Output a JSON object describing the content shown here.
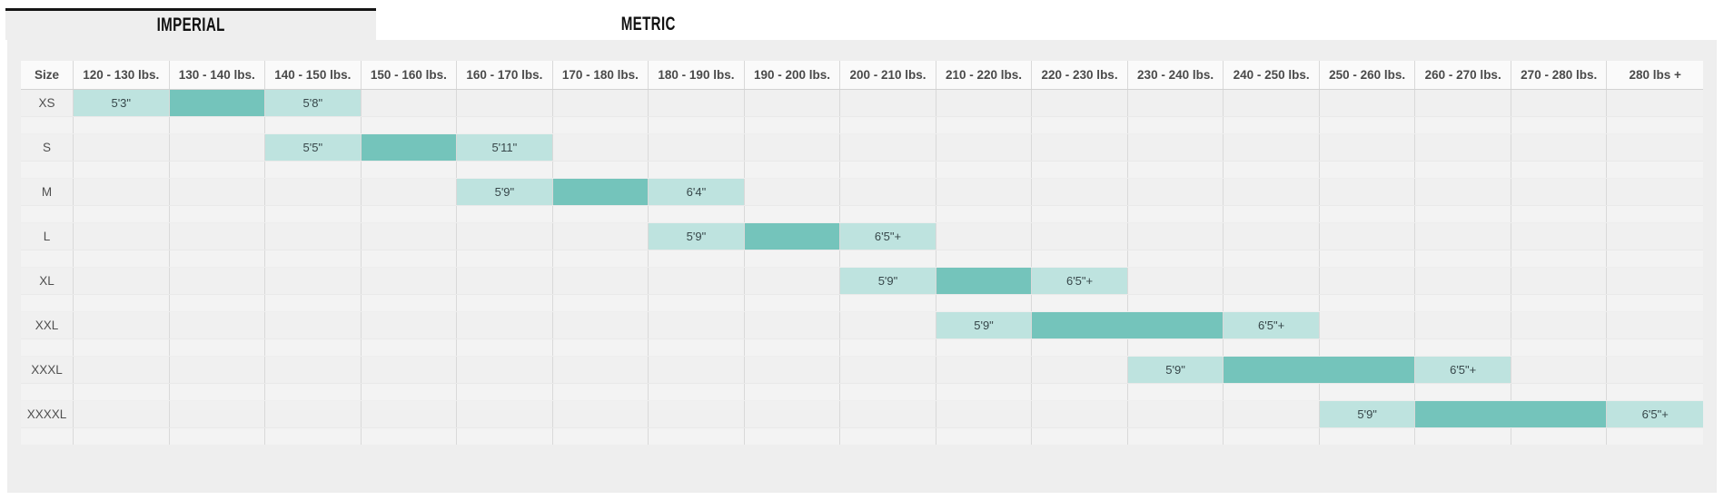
{
  "tabs": {
    "imperial": {
      "label": "IMPERIAL",
      "active": true
    },
    "metric": {
      "label": "METRIC",
      "active": false
    }
  },
  "size_chart": {
    "corner_header": "Size",
    "weight_columns": [
      "120 - 130 lbs.",
      "130 - 140 lbs.",
      "140 - 150 lbs.",
      "150 - 160 lbs.",
      "160 - 170 lbs.",
      "170 - 180 lbs.",
      "180 - 190 lbs.",
      "190 - 200 lbs.",
      "200 - 210 lbs.",
      "210 - 220 lbs.",
      "220 - 230 lbs.",
      "230 - 240 lbs.",
      "240 - 250 lbs.",
      "250 - 260 lbs.",
      "260 - 270 lbs.",
      "270 - 280 lbs.",
      "280 lbs +"
    ],
    "rows": [
      {
        "size": "XS",
        "highlights": [
          {
            "col": 0,
            "style": "light",
            "span": 1,
            "value": "5'3\""
          },
          {
            "col": 1,
            "style": "dark",
            "span": 1,
            "value": ""
          },
          {
            "col": 2,
            "style": "light",
            "span": 1,
            "value": "5'8\""
          }
        ]
      },
      {
        "size": "S",
        "highlights": [
          {
            "col": 2,
            "style": "light",
            "span": 1,
            "value": "5'5\""
          },
          {
            "col": 3,
            "style": "dark",
            "span": 1,
            "value": ""
          },
          {
            "col": 4,
            "style": "light",
            "span": 1,
            "value": "5'11\""
          }
        ]
      },
      {
        "size": "M",
        "highlights": [
          {
            "col": 4,
            "style": "light",
            "span": 1,
            "value": "5'9\""
          },
          {
            "col": 5,
            "style": "dark",
            "span": 1,
            "value": ""
          },
          {
            "col": 6,
            "style": "light",
            "span": 1,
            "value": "6'4\""
          }
        ]
      },
      {
        "size": "L",
        "highlights": [
          {
            "col": 6,
            "style": "light",
            "span": 1,
            "value": "5'9\""
          },
          {
            "col": 7,
            "style": "dark",
            "span": 1,
            "value": ""
          },
          {
            "col": 8,
            "style": "light",
            "span": 1,
            "value": "6'5\"+"
          }
        ]
      },
      {
        "size": "XL",
        "highlights": [
          {
            "col": 8,
            "style": "light",
            "span": 1,
            "value": "5'9\""
          },
          {
            "col": 9,
            "style": "dark",
            "span": 1,
            "value": ""
          },
          {
            "col": 10,
            "style": "light",
            "span": 1,
            "value": "6'5\"+"
          }
        ]
      },
      {
        "size": "XXL",
        "highlights": [
          {
            "col": 9,
            "style": "light",
            "span": 1,
            "value": "5'9\""
          },
          {
            "col": 10,
            "style": "dark",
            "span": 2,
            "value": ""
          },
          {
            "col": 12,
            "style": "light",
            "span": 1,
            "value": "6'5\"+"
          }
        ]
      },
      {
        "size": "XXXL",
        "highlights": [
          {
            "col": 11,
            "style": "light",
            "span": 1,
            "value": "5'9\""
          },
          {
            "col": 12,
            "style": "dark",
            "span": 2,
            "value": ""
          },
          {
            "col": 14,
            "style": "light",
            "span": 1,
            "value": "6'5\"+"
          }
        ]
      },
      {
        "size": "XXXXL",
        "highlights": [
          {
            "col": 13,
            "style": "light",
            "span": 1,
            "value": "5'9\""
          },
          {
            "col": 14,
            "style": "dark",
            "span": 2,
            "value": ""
          },
          {
            "col": 16,
            "style": "light",
            "span": 1,
            "value": "6'5\"+"
          }
        ]
      }
    ]
  },
  "colors": {
    "highlight_light": "#bee3df",
    "highlight_dark": "#74c4bb"
  }
}
